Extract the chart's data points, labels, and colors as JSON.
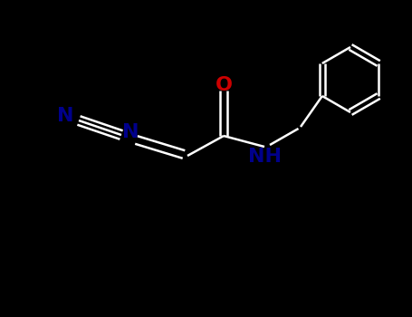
{
  "bg_color": "#000000",
  "bond_color": "#ffffff",
  "label_color_N": "#00008B",
  "label_color_O": "#cc0000",
  "figsize": [
    4.55,
    3.5
  ],
  "dpi": 100,
  "xlim": [
    0,
    9.1
  ],
  "ylim": [
    0,
    7.0
  ]
}
